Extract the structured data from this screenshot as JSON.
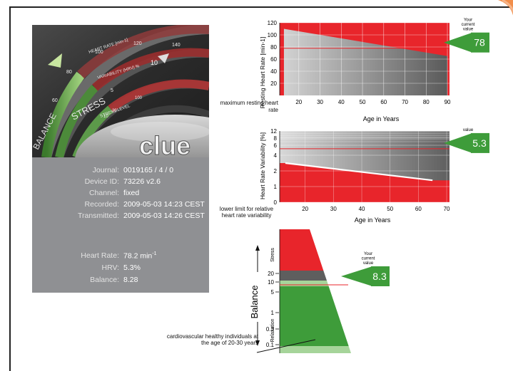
{
  "device_panel": {
    "logo": "clue",
    "dial_labels": {
      "heart_rate": "HEART RATE [min-1]",
      "variability": "VARIABILITY (HRV) %",
      "stress": "STRESS",
      "stress_level": "STRESS LEVEL",
      "balance": "BALANCE",
      "hr_ticks": [
        "60",
        "80",
        "100",
        "120",
        "140"
      ],
      "hrv_ticks": [
        "5",
        "10"
      ],
      "stress_ticks": [
        "10",
        "20",
        "100"
      ]
    },
    "info": [
      {
        "label": "Journal:",
        "value": "0019165 / 4 / 0"
      },
      {
        "label": "Device ID:",
        "value": "73226 v2.6"
      },
      {
        "label": "Channel:",
        "value": "fixed"
      },
      {
        "label": "Recorded:",
        "value": "2009-05-03 14:23 CEST"
      },
      {
        "label": "Transmitted:",
        "value": "2009-05-03 14:26 CEST"
      }
    ],
    "summary": [
      {
        "label": "Heart Rate:",
        "value": "78.2 min",
        "sup": "-1"
      },
      {
        "label": "HRV:",
        "value": "5.3%",
        "sup": ""
      },
      {
        "label": "Balance:",
        "value": "8.28",
        "sup": ""
      }
    ]
  },
  "colors": {
    "red": "#e8252b",
    "green": "#3e9c3a",
    "light_green": "#a6d49a",
    "grey_dark": "#5e5e5e",
    "grey_light": "#cfcfcf"
  },
  "chart_data": [
    {
      "type": "area",
      "ylabel": "Resting Heart Rate [min-1]",
      "xlabel": "Age in Years",
      "x_ticks": [
        20,
        30,
        40,
        50,
        60,
        70,
        80,
        90
      ],
      "y_ticks": [
        20,
        40,
        60,
        80,
        100,
        120
      ],
      "xlim": [
        11,
        91
      ],
      "ylim": [
        0,
        120
      ],
      "upper_boundary": {
        "x": [
          13,
          90
        ],
        "y": [
          110,
          65
        ]
      },
      "current_value": 78,
      "current_label": "Your current value",
      "current_text": "78",
      "left_note": "maximum resting heart rate"
    },
    {
      "type": "area",
      "ylabel": "Heart Rate Variability [%]",
      "xlabel": "Age in Years",
      "x_ticks": [
        20,
        30,
        40,
        50,
        60,
        70
      ],
      "y_ticks": [
        0,
        1,
        2,
        4,
        6,
        8,
        12
      ],
      "xlim": [
        11,
        71
      ],
      "ylim": [
        0,
        12
      ],
      "lower_boundary": {
        "x": [
          13,
          65
        ],
        "y": [
          3.0,
          1.4
        ]
      },
      "current_value": 5.3,
      "current_label": "Your current value",
      "current_text": "5.3",
      "left_note": "lower limit for relative heart rate variability"
    },
    {
      "type": "area",
      "ylabel": "Balance",
      "upper_label": "Stress",
      "lower_label": "Relaxation",
      "y_ticks": [
        "20",
        "10",
        "5",
        "1",
        "0.3",
        "0.1"
      ],
      "current_value": 8.3,
      "current_label": "Your current value",
      "current_text": "8.3",
      "note": "cardiovascular healthy individuals at the age of 20-30 years"
    }
  ]
}
